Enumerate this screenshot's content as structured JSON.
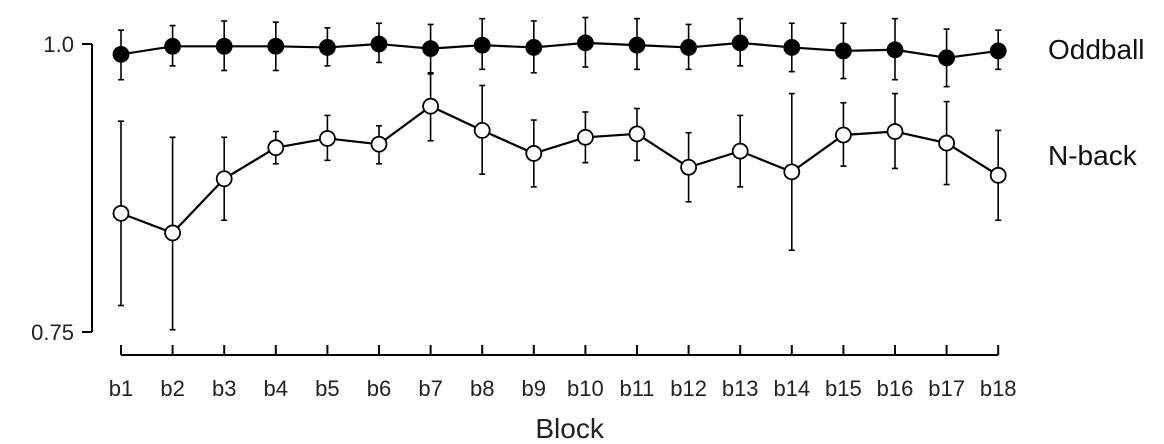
{
  "chart_data": {
    "type": "line",
    "title": "",
    "xlabel": "Block",
    "ylabel": "",
    "categories": [
      "b1",
      "b2",
      "b3",
      "b4",
      "b5",
      "b6",
      "b7",
      "b8",
      "b9",
      "b10",
      "b11",
      "b12",
      "b13",
      "b14",
      "b15",
      "b16",
      "b17",
      "b18"
    ],
    "ylim": [
      0.75,
      1.0
    ],
    "y_ticks": [
      "0.75",
      "1.0"
    ],
    "grid": false,
    "legend": "direct labels at right",
    "series": [
      {
        "name": "Oddball",
        "marker": "filled",
        "color": "#000000",
        "values": [
          0.991,
          0.998,
          0.998,
          0.998,
          0.997,
          1.0,
          0.996,
          0.999,
          0.997,
          1.001,
          0.999,
          0.997,
          1.001,
          0.997,
          0.994,
          0.995,
          0.988,
          0.994
        ],
        "error_low": [
          0.969,
          0.981,
          0.977,
          0.977,
          0.981,
          0.984,
          0.974,
          0.978,
          0.975,
          0.98,
          0.978,
          0.978,
          0.981,
          0.976,
          0.97,
          0.969,
          0.963,
          0.978
        ],
        "error_high": [
          1.012,
          1.016,
          1.02,
          1.019,
          1.014,
          1.018,
          1.017,
          1.022,
          1.02,
          1.023,
          1.022,
          1.017,
          1.022,
          1.018,
          1.018,
          1.022,
          1.013,
          1.012
        ]
      },
      {
        "name": "N-back",
        "marker": "open",
        "color": "#000000",
        "values": [
          0.853,
          0.836,
          0.883,
          0.91,
          0.918,
          0.913,
          0.946,
          0.925,
          0.905,
          0.919,
          0.922,
          0.893,
          0.907,
          0.889,
          0.921,
          0.924,
          0.914,
          0.886
        ],
        "error_low": [
          0.773,
          0.752,
          0.847,
          0.896,
          0.899,
          0.896,
          0.916,
          0.887,
          0.876,
          0.897,
          0.899,
          0.863,
          0.876,
          0.821,
          0.894,
          0.892,
          0.878,
          0.847
        ],
        "error_high": [
          0.933,
          0.919,
          0.919,
          0.924,
          0.938,
          0.929,
          0.975,
          0.964,
          0.934,
          0.941,
          0.944,
          0.923,
          0.938,
          0.957,
          0.949,
          0.957,
          0.95,
          0.925
        ]
      }
    ]
  }
}
